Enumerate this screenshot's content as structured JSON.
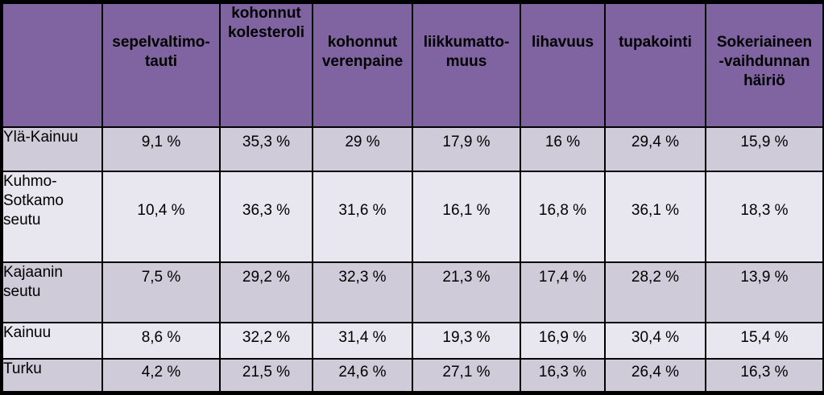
{
  "table": {
    "header": {
      "corner": "",
      "columns": [
        [
          "sepelvaltimo-",
          "tauti"
        ],
        [
          "kohonnut",
          "kolesteroli"
        ],
        [
          "kohonnut",
          "verenpaine"
        ],
        [
          "liikkumatto-",
          "muus"
        ],
        [
          "lihavuus"
        ],
        [
          "tupakointi"
        ],
        [
          "Sokeriaineen",
          "-vaihdunnan",
          "häiriö"
        ]
      ]
    },
    "rows": [
      {
        "label": [
          "Ylä-Kainuu"
        ],
        "values": [
          "9,1 %",
          "35,3 %",
          "29 %",
          "17,9 %",
          "16 %",
          "29,4 %",
          "15,9 %"
        ]
      },
      {
        "label": [
          "Kuhmo-",
          "Sotkamo",
          "seutu"
        ],
        "values": [
          "10,4 %",
          "36,3 %",
          "31,6 %",
          "16,1 %",
          "16,8 %",
          "36,1 %",
          "18,3 %"
        ]
      },
      {
        "label": [
          "Kajaanin",
          "seutu"
        ],
        "values": [
          "7,5 %",
          "29,2 %",
          "32,3 %",
          "21,3 %",
          "17,4 %",
          "28,2 %",
          "13,9 %"
        ]
      },
      {
        "label": [
          "Kainuu"
        ],
        "values": [
          "8,6 %",
          "32,2 %",
          "31,4 %",
          "19,3 %",
          "16,9 %",
          "30,4 %",
          "15,4 %"
        ]
      },
      {
        "label": [
          "Turku"
        ],
        "values": [
          "4,2 %",
          "21,5 %",
          "24,6 %",
          "27,1 %",
          "16,3 %",
          "26,4 %",
          "16,3 %"
        ]
      }
    ]
  },
  "colors": {
    "header_bg": "#8064a2",
    "row_odd_bg": "#cfcbd9",
    "row_even_bg": "#e8e6ee",
    "grid_lines": "#000000"
  }
}
